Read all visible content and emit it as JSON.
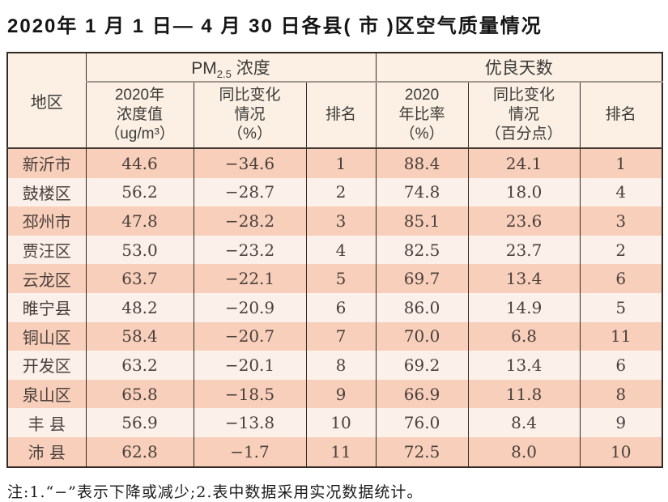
{
  "page": {
    "title": "2020年 1 月 1 日— 4 月 30 日各县( 市 )区空气质量情况",
    "note": "注:1.“−”表示下降或减少;2.表中数据采用实况数据统计。"
  },
  "table": {
    "header": {
      "region": "地区",
      "pm_group": {
        "prefix": "PM",
        "sub": "2.5",
        "suffix": " 浓度"
      },
      "good_group": "优良天数",
      "sub_columns": {
        "pm_value": [
          "2020年",
          "浓度值",
          "（ug/m³）"
        ],
        "pm_change": [
          "同比变化",
          "情况",
          "（%）"
        ],
        "pm_rank": "排名",
        "good_ratio": [
          "2020",
          "年比率",
          "（%）"
        ],
        "good_change": [
          "同比变化",
          "情况",
          "（百分点）"
        ],
        "good_rank": "排名"
      }
    },
    "rows": [
      [
        "新沂市",
        "44.6",
        "−34.6",
        "1",
        "88.4",
        "24.1",
        "1"
      ],
      [
        "鼓楼区",
        "56.2",
        "−28.7",
        "2",
        "74.8",
        "18.0",
        "4"
      ],
      [
        "邳州市",
        "47.8",
        "−28.2",
        "3",
        "85.1",
        "23.6",
        "3"
      ],
      [
        "贾汪区",
        "53.0",
        "−23.2",
        "4",
        "82.5",
        "23.7",
        "2"
      ],
      [
        "云龙区",
        "63.7",
        "−22.1",
        "5",
        "69.7",
        "13.4",
        "6"
      ],
      [
        "睢宁县",
        "48.2",
        "−20.9",
        "6",
        "86.0",
        "14.9",
        "5"
      ],
      [
        "铜山区",
        "58.4",
        "−20.7",
        "7",
        "70.0",
        "6.8",
        "11"
      ],
      [
        "开发区",
        "63.2",
        "−20.1",
        "8",
        "69.2",
        "13.4",
        "6"
      ],
      [
        "泉山区",
        "65.8",
        "−18.5",
        "9",
        "66.9",
        "11.8",
        "8"
      ],
      [
        "丰 县",
        "56.9",
        "−13.8",
        "10",
        "76.0",
        "8.4",
        "9"
      ],
      [
        "沛 县",
        "62.8",
        "−1.7",
        "11",
        "72.5",
        "8.0",
        "10"
      ]
    ]
  },
  "colors": {
    "stripe_peach": "#f8cfba",
    "stripe_light": "#fcf1ea",
    "header_band": "#fbf0e3",
    "border_dark": "#332925",
    "header_divider_gray": "#a2978f",
    "data_text": "#4a403c"
  }
}
